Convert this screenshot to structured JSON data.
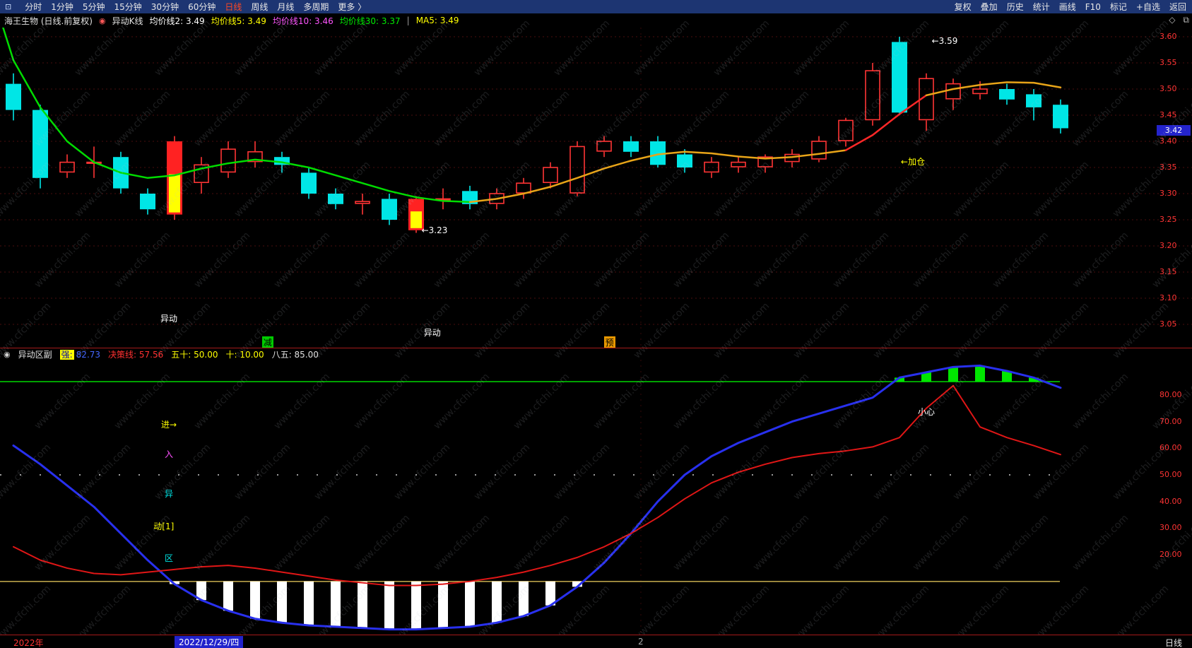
{
  "top_menu": {
    "left": [
      "分时",
      "1分钟",
      "5分钟",
      "15分钟",
      "30分钟",
      "60分钟",
      "日线",
      "周线",
      "月线",
      "多周期",
      "更多 〉"
    ],
    "active": "日线",
    "right": [
      "复权",
      "叠加",
      "历史",
      "统计",
      "画线",
      "F10",
      "标记",
      "+自选",
      "返回"
    ]
  },
  "info_bar": {
    "symbol": "海王生物 (日线.前复权)",
    "indicator": "异动K线",
    "metrics": [
      {
        "label": "均价线2:",
        "value": "3.49",
        "color": "#ffffff"
      },
      {
        "label": "均价线5:",
        "value": "3.49",
        "color": "#ffff00"
      },
      {
        "label": "均价线10:",
        "value": "3.46",
        "color": "#ff55ff"
      },
      {
        "label": "均价线30:",
        "value": "3.37",
        "color": "#00ee00"
      }
    ],
    "divider": "|",
    "ma_label": "MA5: 3.49",
    "window_icons": [
      "◇",
      "⧉"
    ]
  },
  "main_chart": {
    "axis_prices": [
      "3.60",
      "3.55",
      "3.50",
      "3.45",
      "3.40",
      "3.35",
      "3.30",
      "3.25",
      "3.20",
      "3.15",
      "3.10",
      "3.05"
    ],
    "current_price": "3.42",
    "candles": [
      [
        3.51,
        3.46,
        3.53,
        3.44,
        "d"
      ],
      [
        3.46,
        3.33,
        3.47,
        3.31,
        "d"
      ],
      [
        3.34,
        3.36,
        3.375,
        3.33,
        "u"
      ],
      [
        3.36,
        3.36,
        3.39,
        3.33,
        "u"
      ],
      [
        3.37,
        3.31,
        3.38,
        3.3,
        "d"
      ],
      [
        3.3,
        3.27,
        3.31,
        3.26,
        "d"
      ],
      [
        3.26,
        3.4,
        3.41,
        3.25,
        "s",
        0.45
      ],
      [
        3.32,
        3.355,
        3.37,
        3.3,
        "u"
      ],
      [
        3.34,
        3.385,
        3.4,
        3.33,
        "u"
      ],
      [
        3.36,
        3.38,
        3.4,
        3.35,
        "u"
      ],
      [
        3.37,
        3.355,
        3.38,
        3.34,
        "d"
      ],
      [
        3.34,
        3.3,
        3.35,
        3.29,
        "d"
      ],
      [
        3.3,
        3.28,
        3.31,
        3.27,
        "d"
      ],
      [
        3.28,
        3.285,
        3.3,
        3.26,
        "u"
      ],
      [
        3.29,
        3.25,
        3.3,
        3.24,
        "d"
      ],
      [
        3.29,
        3.23,
        3.295,
        3.225,
        "s",
        0.4
      ],
      [
        3.29,
        3.29,
        3.31,
        3.27,
        "u"
      ],
      [
        3.305,
        3.28,
        3.315,
        3.27,
        "d"
      ],
      [
        3.28,
        3.3,
        3.31,
        3.27,
        "u"
      ],
      [
        3.3,
        3.32,
        3.33,
        3.29,
        "u"
      ],
      [
        3.32,
        3.35,
        3.36,
        3.31,
        "u"
      ],
      [
        3.3,
        3.39,
        3.4,
        3.295,
        "u"
      ],
      [
        3.38,
        3.4,
        3.41,
        3.37,
        "u"
      ],
      [
        3.4,
        3.38,
        3.41,
        3.37,
        "d"
      ],
      [
        3.4,
        3.355,
        3.41,
        3.35,
        "d"
      ],
      [
        3.375,
        3.35,
        3.385,
        3.34,
        "d"
      ],
      [
        3.34,
        3.36,
        3.37,
        3.33,
        "u"
      ],
      [
        3.35,
        3.36,
        3.37,
        3.34,
        "u"
      ],
      [
        3.35,
        3.37,
        3.375,
        3.34,
        "u"
      ],
      [
        3.36,
        3.375,
        3.385,
        3.35,
        "u"
      ],
      [
        3.365,
        3.4,
        3.41,
        3.36,
        "u"
      ],
      [
        3.4,
        3.44,
        3.445,
        3.39,
        "u"
      ],
      [
        3.44,
        3.535,
        3.55,
        3.43,
        "u"
      ],
      [
        3.59,
        3.455,
        3.6,
        3.45,
        "d"
      ],
      [
        3.44,
        3.52,
        3.53,
        3.42,
        "u"
      ],
      [
        3.48,
        3.51,
        3.52,
        3.46,
        "u"
      ],
      [
        3.49,
        3.5,
        3.515,
        3.48,
        "u"
      ],
      [
        3.5,
        3.48,
        3.51,
        3.47,
        "d"
      ],
      [
        3.49,
        3.465,
        3.5,
        3.44,
        "d"
      ],
      [
        3.47,
        3.425,
        3.48,
        3.415,
        "d"
      ]
    ],
    "ma_segments": [
      {
        "color": "#00dc00",
        "w": 2.5,
        "points": [
          [
            -0.4,
            3.62
          ],
          [
            0,
            3.555
          ],
          [
            1,
            3.465
          ],
          [
            2,
            3.4
          ],
          [
            3,
            3.36
          ],
          [
            4,
            3.34
          ],
          [
            5,
            3.33
          ],
          [
            6,
            3.335
          ],
          [
            7,
            3.348
          ],
          [
            8,
            3.358
          ],
          [
            9,
            3.365
          ],
          [
            10,
            3.36
          ],
          [
            11,
            3.35
          ],
          [
            12,
            3.335
          ],
          [
            13,
            3.32
          ],
          [
            14,
            3.305
          ],
          [
            15,
            3.293
          ],
          [
            16,
            3.286
          ],
          [
            17,
            3.284
          ]
        ]
      },
      {
        "color": "#e8a418",
        "w": 2.5,
        "points": [
          [
            17,
            3.284
          ],
          [
            18,
            3.29
          ],
          [
            19,
            3.3
          ],
          [
            20,
            3.313
          ],
          [
            21,
            3.33
          ],
          [
            22,
            3.348
          ],
          [
            23,
            3.363
          ],
          [
            24,
            3.375
          ],
          [
            25,
            3.38
          ],
          [
            26,
            3.377
          ],
          [
            27,
            3.371
          ],
          [
            28,
            3.367
          ],
          [
            29,
            3.37
          ],
          [
            30,
            3.376
          ],
          [
            31,
            3.383
          ]
        ]
      },
      {
        "color": "#ff2828",
        "w": 2.5,
        "points": [
          [
            31,
            3.383
          ],
          [
            32,
            3.412
          ],
          [
            33,
            3.452
          ],
          [
            34,
            3.488
          ]
        ]
      },
      {
        "color": "#e8a418",
        "w": 2.5,
        "points": [
          [
            34,
            3.488
          ],
          [
            35,
            3.5
          ],
          [
            36,
            3.508
          ],
          [
            37,
            3.513
          ],
          [
            38,
            3.512
          ],
          [
            39,
            3.503
          ]
        ]
      }
    ],
    "annotations": [
      {
        "i": 34.2,
        "price": 3.59,
        "text": "←3.59",
        "color": "#ffffff"
      },
      {
        "i": 15.2,
        "price": 3.228,
        "text": "←3.23",
        "color": "#ffffff"
      },
      {
        "i": 33.05,
        "price": 3.362,
        "text": "←加仓",
        "color": "#ffff00"
      },
      {
        "i": 5.79,
        "price": 3.062,
        "text": "异动",
        "color": "#ffffff",
        "anchor": "center"
      },
      {
        "i": 15.6,
        "price": 3.035,
        "text": "异动",
        "color": "#ffffff",
        "anchor": "center"
      },
      {
        "i": 9.47,
        "price": 3.016,
        "text": "减",
        "color": "#000000",
        "bg": "#00cc00",
        "anchor": "center"
      },
      {
        "i": 22.2,
        "price": 3.016,
        "text": "预",
        "color": "#000000",
        "bg": "#e89800",
        "anchor": "center"
      }
    ]
  },
  "sub_chart": {
    "header": {
      "name": "异动区副",
      "metrics": [
        {
          "label": "强:",
          "value": "82.73",
          "labelBg": "#ffff00",
          "labelColor": "#0000aa",
          "valueColor": "#4466ff"
        },
        {
          "label": "决策线:",
          "value": "57.56",
          "color": "#ff3030"
        },
        {
          "label": "五十:",
          "value": "50.00",
          "color": "#ffff00"
        },
        {
          "label": "十:",
          "value": "10.00",
          "color": "#ffff00"
        },
        {
          "label": "八五:",
          "value": "85.00",
          "color": "#e0e0e0"
        }
      ]
    },
    "axis_values": [
      "80.00",
      "70.00",
      "60.00",
      "50.00",
      "40.00",
      "30.00",
      "20.00"
    ],
    "ref_lines": [
      {
        "value": 85,
        "color": "#00c800",
        "style": "solid"
      },
      {
        "value": 10,
        "color": "#b8a048",
        "style": "solid"
      },
      {
        "value": 50,
        "color": "#999999",
        "style": "dotted"
      }
    ],
    "series": {
      "blue": {
        "color": "#2830ee",
        "width": 3,
        "values": [
          61,
          54,
          46,
          38,
          28,
          18,
          9,
          3,
          -1,
          -4,
          -5.5,
          -6.5,
          -7,
          -7.5,
          -8,
          -8,
          -7.5,
          -7,
          -5.5,
          -3,
          1,
          8,
          17,
          28,
          40,
          50,
          57,
          62,
          66,
          70,
          73,
          76,
          79,
          86.5,
          88.5,
          90.5,
          91,
          89,
          86.5,
          82.7
        ]
      },
      "red": {
        "color": "#e01616",
        "width": 2,
        "values": [
          23,
          18,
          15,
          13,
          12.5,
          13.5,
          14.5,
          15.5,
          16,
          15,
          13.5,
          12,
          10.5,
          9.5,
          8.5,
          8.5,
          9,
          10,
          11.5,
          13.5,
          16,
          19,
          23,
          28,
          34,
          41,
          47,
          51,
          54,
          56.5,
          58,
          59,
          60.5,
          64,
          75,
          83.5,
          68,
          64,
          61,
          57.6
        ]
      }
    },
    "bars": {
      "white_below": 10,
      "green_above": 85
    },
    "annotations": [
      {
        "i": 5.79,
        "value": 69,
        "text": "进→",
        "color": "#ffff00",
        "anchor": "center"
      },
      {
        "i": 5.79,
        "value": 58,
        "text": "入",
        "color": "#ff50ff",
        "anchor": "center"
      },
      {
        "i": 5.79,
        "value": 43,
        "text": "异",
        "color": "#00e5e5",
        "anchor": "center"
      },
      {
        "i": 5.6,
        "value": 31,
        "text": "动[1]",
        "color": "#ffff00",
        "anchor": "center"
      },
      {
        "i": 5.79,
        "value": 19,
        "text": "区",
        "color": "#00e5e5",
        "anchor": "center"
      },
      {
        "i": 34.0,
        "value": 74,
        "text": "小心",
        "color": "#ffffff",
        "anchor": "center"
      }
    ]
  },
  "bottom_bar": {
    "year": "2022年",
    "date": "2022/12/29/四",
    "tick": "2",
    "period": "日线"
  },
  "watermark": {
    "text": "www.cfchi.com"
  }
}
